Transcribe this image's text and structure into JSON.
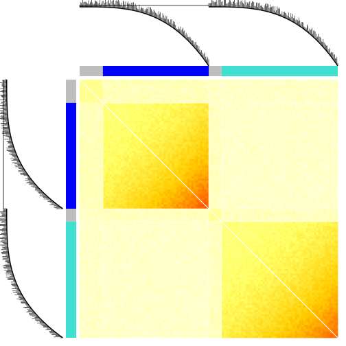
{
  "chart_data": {
    "type": "heatmap",
    "title": "",
    "xlabel": "",
    "ylabel": "",
    "modules": [
      {
        "color": "#bebebe",
        "share": 0.09
      },
      {
        "color": "#0000ff",
        "share": 0.41
      },
      {
        "color": "#bebebe",
        "share": 0.05
      },
      {
        "color": "#40e0d0",
        "share": 0.45
      }
    ],
    "values": [
      [
        0.15,
        0.06,
        0.04,
        0.03
      ],
      [
        0.06,
        0.62,
        0.05,
        0.02
      ],
      [
        0.04,
        0.05,
        0.14,
        0.05
      ],
      [
        0.03,
        0.02,
        0.05,
        0.58
      ]
    ],
    "color_scale": [
      "#ffffd4",
      "#ffff66",
      "#ffcc00",
      "#ff6600",
      "#dd2200"
    ],
    "dendrograms": [
      "top",
      "left"
    ],
    "diagonal": "#ffffff"
  }
}
